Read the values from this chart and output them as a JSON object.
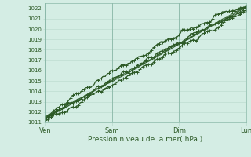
{
  "title": "",
  "xlabel": "Pression niveau de la mer( hPa )",
  "bg_color": "#d4ede4",
  "grid_color": "#b8d8cc",
  "line_color": "#2d5a27",
  "ylim": [
    1011,
    1022.5
  ],
  "yticks": [
    1011,
    1012,
    1013,
    1014,
    1015,
    1016,
    1017,
    1018,
    1019,
    1020,
    1021,
    1022
  ],
  "xtick_labels": [
    "Ven",
    "Sam",
    "Dim",
    "Lun"
  ],
  "xtick_pos": [
    0,
    48,
    96,
    144
  ],
  "total_points": 145,
  "figsize": [
    3.2,
    2.0
  ],
  "dpi": 100
}
